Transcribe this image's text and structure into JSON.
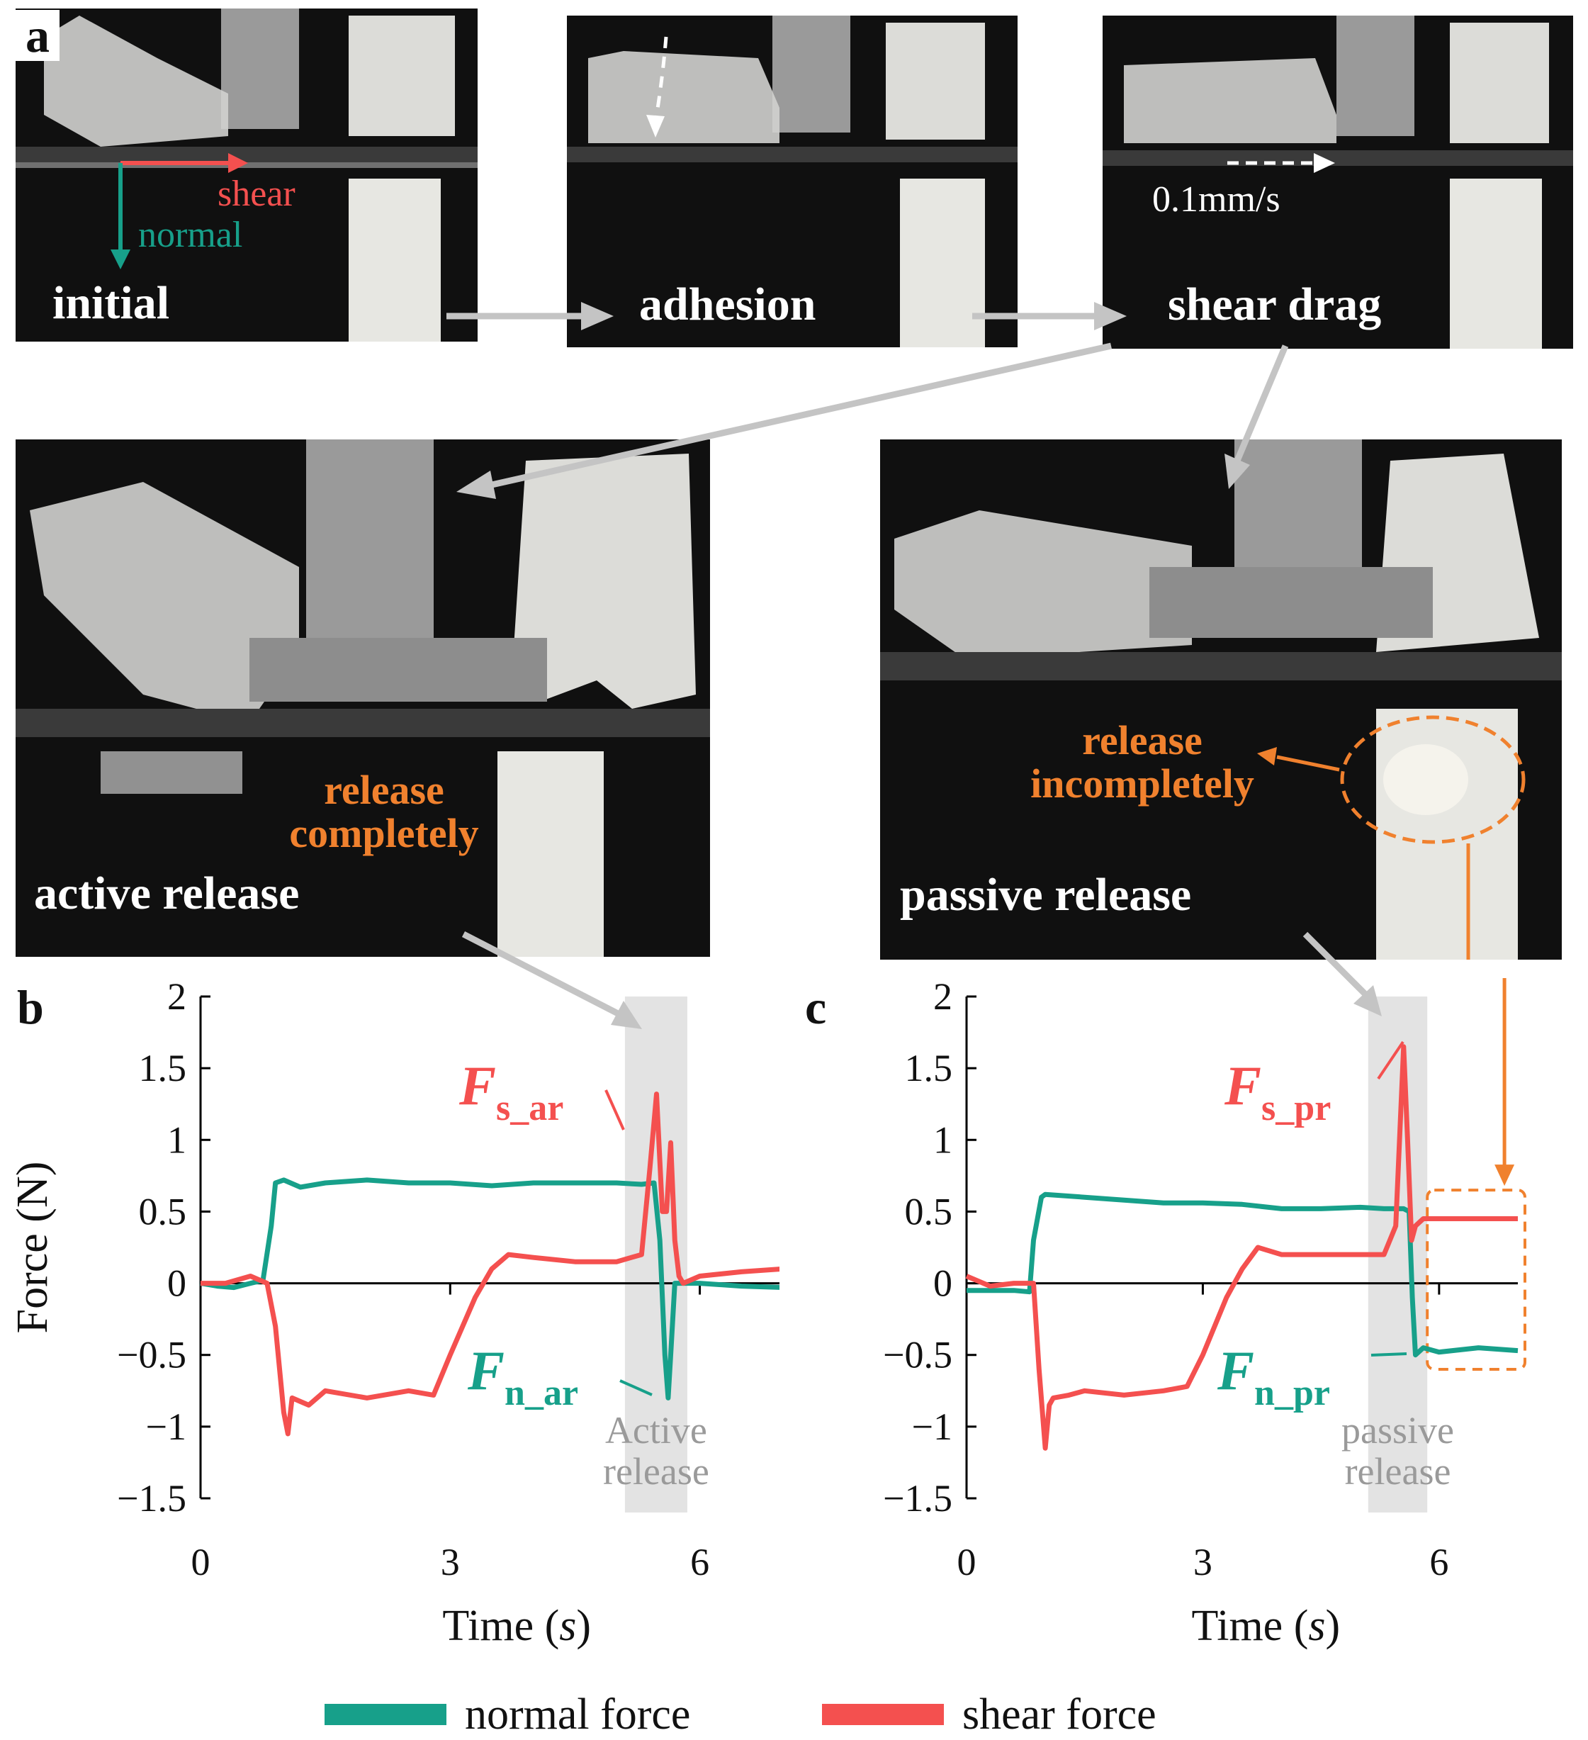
{
  "panel_labels": {
    "a": "a",
    "b": "b",
    "c": "c"
  },
  "photos": {
    "initial": {
      "label": "initial",
      "shear": "shear",
      "normal": "normal"
    },
    "adhesion": {
      "label": "adhesion"
    },
    "shear_drag": {
      "label": "shear drag",
      "speed": "0.1mm/s"
    },
    "active_release": {
      "label": "active release",
      "note_line1": "release",
      "note_line2": "completely"
    },
    "passive_release": {
      "label": "passive release",
      "note_line1": "release",
      "note_line2": "incompletely"
    }
  },
  "colors": {
    "normal": "#17a08a",
    "shear": "#f4504f",
    "orange": "#f0812e",
    "highlight": "#e3e3e3",
    "arrow": "#c4c4c4"
  },
  "legend": {
    "normal": "normal force",
    "shear": "shear force"
  },
  "chart_data": [
    {
      "id": "b",
      "type": "line",
      "xlabel_main": "Time (",
      "xlabel_unit": "s",
      "xlabel_end": ")",
      "ylabel": "Force (N)",
      "xlim": [
        0,
        7
      ],
      "ylim": [
        -1.5,
        2
      ],
      "xticks": [
        "0",
        "3",
        "6"
      ],
      "yticks": [
        "2",
        "1.5",
        "1",
        "0.5",
        "0",
        "−0.5",
        "−1",
        "−1.5"
      ],
      "highlight": {
        "x": [
          5.1,
          5.85
        ],
        "label_line1": "Active",
        "label_line2": "release"
      },
      "annotations": {
        "shear": {
          "main": "F",
          "sub": "s_ar"
        },
        "normal": {
          "main": "F",
          "sub": "n_ar"
        }
      },
      "series": [
        {
          "name": "normal force",
          "key": "normal",
          "x": [
            0,
            0.2,
            0.4,
            0.6,
            0.75,
            0.85,
            0.9,
            1.0,
            1.2,
            1.5,
            2.0,
            2.5,
            3.0,
            3.5,
            4.0,
            4.5,
            5.0,
            5.3,
            5.45,
            5.52,
            5.58,
            5.62,
            5.65,
            5.7,
            5.8,
            6.0,
            6.5,
            7.0
          ],
          "y": [
            0,
            -0.02,
            -0.03,
            0,
            0.02,
            0.4,
            0.7,
            0.72,
            0.67,
            0.7,
            0.72,
            0.7,
            0.7,
            0.68,
            0.7,
            0.7,
            0.7,
            0.69,
            0.7,
            0.3,
            -0.5,
            -0.8,
            -0.5,
            0.0,
            0.0,
            0.0,
            -0.02,
            -0.03
          ]
        },
        {
          "name": "shear force",
          "key": "shear",
          "x": [
            0,
            0.3,
            0.6,
            0.8,
            0.9,
            1.0,
            1.05,
            1.1,
            1.3,
            1.5,
            2.0,
            2.5,
            2.8,
            3.0,
            3.3,
            3.5,
            3.7,
            4.0,
            4.5,
            5.0,
            5.3,
            5.4,
            5.48,
            5.55,
            5.6,
            5.65,
            5.7,
            5.75,
            5.8,
            6.0,
            6.5,
            7.0
          ],
          "y": [
            0,
            0.0,
            0.05,
            0,
            -0.3,
            -0.9,
            -1.05,
            -0.8,
            -0.85,
            -0.75,
            -0.8,
            -0.75,
            -0.78,
            -0.5,
            -0.1,
            0.1,
            0.2,
            0.18,
            0.15,
            0.15,
            0.2,
            0.8,
            1.32,
            0.5,
            0.5,
            0.98,
            0.3,
            0.05,
            0.0,
            0.05,
            0.08,
            0.1
          ]
        }
      ]
    },
    {
      "id": "c",
      "type": "line",
      "xlabel_main": "Time (",
      "xlabel_unit": "s",
      "xlabel_end": ")",
      "ylabel": "",
      "xlim": [
        0,
        7
      ],
      "ylim": [
        -1.5,
        2
      ],
      "xticks": [
        "0",
        "3",
        "6"
      ],
      "yticks": [
        "2",
        "1.5",
        "1",
        "0.5",
        "0",
        "−0.5",
        "−1",
        "−1.5"
      ],
      "highlight": {
        "x": [
          5.1,
          5.85
        ],
        "label_line1": "passive",
        "label_line2": "release"
      },
      "dashed_box": {
        "x": [
          5.85,
          7.0
        ],
        "y": [
          -0.6,
          0.65
        ]
      },
      "annotations": {
        "shear": {
          "main": "F",
          "sub": "s_pr"
        },
        "normal": {
          "main": "F",
          "sub": "n_pr"
        }
      },
      "series": [
        {
          "name": "normal force",
          "key": "normal",
          "x": [
            0,
            0.3,
            0.6,
            0.8,
            0.85,
            0.95,
            1.0,
            1.5,
            2.0,
            2.5,
            3.0,
            3.5,
            4.0,
            4.5,
            5.0,
            5.3,
            5.55,
            5.62,
            5.66,
            5.7,
            5.8,
            6.0,
            6.5,
            7.0
          ],
          "y": [
            -0.05,
            -0.05,
            -0.05,
            -0.06,
            0.3,
            0.6,
            0.62,
            0.6,
            0.58,
            0.56,
            0.56,
            0.55,
            0.52,
            0.52,
            0.53,
            0.52,
            0.52,
            0.5,
            -0.1,
            -0.5,
            -0.45,
            -0.48,
            -0.45,
            -0.47
          ]
        },
        {
          "name": "shear force",
          "key": "shear",
          "x": [
            0,
            0.3,
            0.6,
            0.85,
            0.92,
            1.0,
            1.05,
            1.1,
            1.3,
            1.5,
            2.0,
            2.5,
            2.8,
            3.0,
            3.3,
            3.5,
            3.7,
            4.0,
            4.5,
            5.0,
            5.3,
            5.45,
            5.55,
            5.6,
            5.65,
            5.7,
            5.8,
            6.0,
            6.5,
            7.0
          ],
          "y": [
            0.05,
            -0.02,
            0,
            0,
            -0.6,
            -1.15,
            -0.85,
            -0.8,
            -0.78,
            -0.75,
            -0.78,
            -0.75,
            -0.72,
            -0.5,
            -0.1,
            0.1,
            0.25,
            0.2,
            0.2,
            0.2,
            0.2,
            0.4,
            1.65,
            1.0,
            0.3,
            0.4,
            0.45,
            0.45,
            0.45,
            0.45
          ]
        }
      ]
    }
  ]
}
